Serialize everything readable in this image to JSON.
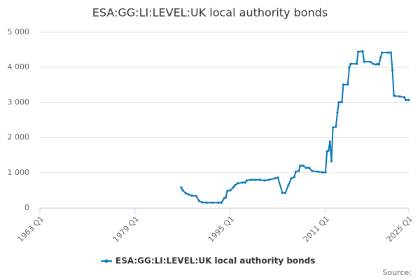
{
  "chart_data": {
    "type": "line",
    "title": "ESA:GG:LI:LEVEL:UK local authority bonds",
    "source": "Source:",
    "xlim": [
      1963,
      2025
    ],
    "xticks": [
      {
        "value": 1963,
        "label": "1963 Q1"
      },
      {
        "value": 1979,
        "label": "1979 Q1"
      },
      {
        "value": 1995,
        "label": "1995 Q1"
      },
      {
        "value": 2011,
        "label": "2011 Q1"
      },
      {
        "value": 2025,
        "label": "2025 Q1"
      }
    ],
    "ylim": [
      0,
      5000
    ],
    "yticks": [
      0,
      {
        "value": 1000,
        "label": "1 000"
      },
      {
        "value": 2000,
        "label": "2 000"
      },
      {
        "value": 3000,
        "label": "3 000"
      },
      {
        "value": 4000,
        "label": "4 000"
      },
      {
        "value": 5000,
        "label": "5 000"
      }
    ],
    "grid": true,
    "x": [
      1986.75,
      1987.0,
      1987.5,
      1988.0,
      1988.5,
      1989.25,
      1989.75,
      1990.25,
      1991.0,
      1992.0,
      1993.0,
      1993.5,
      1994.0,
      1994.25,
      1994.5,
      1995.0,
      1995.5,
      1995.75,
      1996.25,
      1997.0,
      1997.5,
      1997.75,
      1998.5,
      1999.25,
      2000.0,
      2000.75,
      2001.5,
      2002.5,
      2003.0,
      2003.75,
      2004.25,
      2004.75,
      2005.25,
      2005.75,
      2006.0,
      2006.5,
      2006.75,
      2007.25,
      2007.75,
      2008.25,
      2008.75,
      2009.75,
      2010.5,
      2011.0,
      2011.25,
      2011.5,
      2011.75,
      2012.0,
      2012.25,
      2012.75,
      2013.0,
      2013.25,
      2013.75,
      2014.0,
      2014.75,
      2015.0,
      2015.25,
      2016.25,
      2016.5,
      2017.25,
      2017.5,
      2018.5,
      2019.0,
      2019.5,
      2019.75,
      2020.0,
      2020.25,
      2020.5,
      2021.5,
      2022.0,
      2022.25,
      2022.5,
      2023.5,
      2024.25,
      2024.5,
      2025.0
    ],
    "series": [
      {
        "name": "ESA:GG:LI:LEVEL:UK local authority bonds",
        "color": "#0a76b7",
        "values": [
          580,
          500,
          420,
          380,
          350,
          340,
          200,
          160,
          150,
          150,
          150,
          150,
          280,
          300,
          480,
          500,
          580,
          640,
          700,
          720,
          720,
          780,
          800,
          800,
          800,
          780,
          800,
          840,
          860,
          430,
          430,
          640,
          840,
          880,
          1030,
          1050,
          1200,
          1200,
          1140,
          1140,
          1050,
          1030,
          1010,
          1010,
          1610,
          1630,
          1890,
          1330,
          2290,
          2310,
          2710,
          3010,
          3010,
          3510,
          3510,
          4000,
          4100,
          4100,
          4440,
          4460,
          4160,
          4160,
          4100,
          4080,
          4100,
          4080,
          4280,
          4420,
          4420,
          4420,
          3920,
          3190,
          3170,
          3150,
          3070,
          3070
        ]
      }
    ]
  }
}
